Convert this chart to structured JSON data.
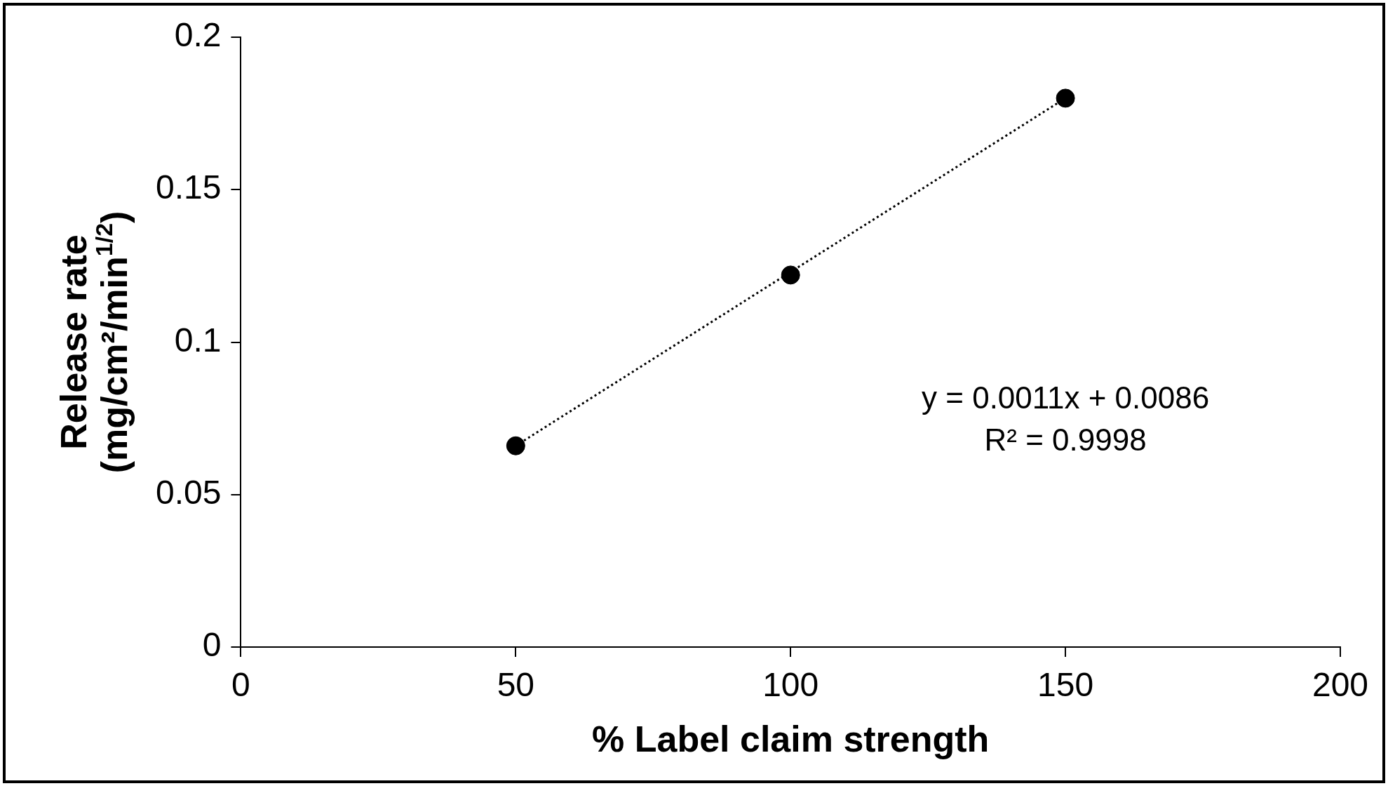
{
  "chart_data": {
    "type": "scatter",
    "xlabel": "% Label claim strength",
    "ylabel": "Release rate\n(mg/cm²/min$^{1/2}$)",
    "xlim": [
      0,
      200
    ],
    "xticks": [
      0,
      50,
      100,
      150,
      200
    ],
    "ylim": [
      0,
      0.2
    ],
    "yticks": [
      0,
      0.05,
      0.1,
      0.15,
      0.2
    ],
    "grid": false,
    "legend": false,
    "marker": "circle",
    "series": [
      {
        "color": "#000000",
        "x": [
          50,
          100,
          150
        ],
        "values": [
          0.066,
          0.122,
          0.18
        ]
      },
      {
        "type": "line",
        "color": "#000000",
        "marker": "none",
        "line_style": "dotted",
        "x": [
          50,
          150
        ],
        "values": [
          0.066,
          0.18
        ]
      }
    ],
    "annotations": [
      "y = 0.0011x + 0.0086",
      "R² = 0.9998"
    ]
  }
}
